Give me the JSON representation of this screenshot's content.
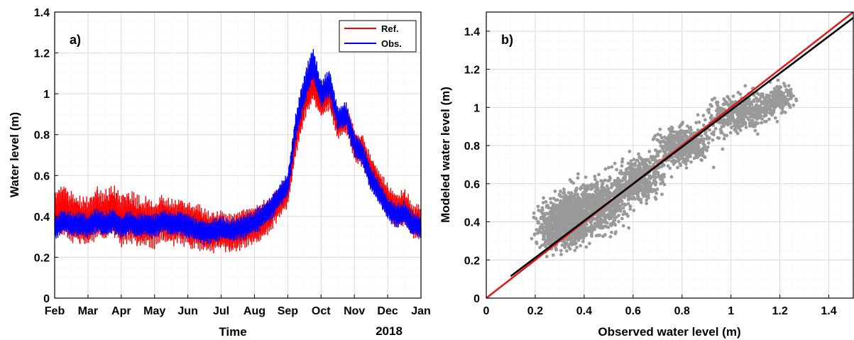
{
  "colors": {
    "ref": "#ff0000",
    "obs": "#0000ff",
    "scatter": "#999999",
    "fit": "#000000",
    "one_to_one": "#e31a1c",
    "grid_major": "#d9d9d9",
    "grid_minor": "#eeeeee"
  },
  "chart_data": [
    {
      "type": "line",
      "panel_label": "a)",
      "xlabel": "Time",
      "ylabel": "Water level (m)",
      "year_label": "2018",
      "ylim": [
        0,
        1.4
      ],
      "grid": true,
      "legend_position": "top-right",
      "xtick_labels": [
        "Feb",
        "Mar",
        "Apr",
        "May",
        "Jun",
        "Jul",
        "Aug",
        "Sep",
        "Oct",
        "Nov",
        "Dec",
        "Jan"
      ],
      "ytick_values": [
        0,
        0.2,
        0.4,
        0.6,
        0.8,
        1,
        1.2,
        1.4
      ],
      "ytick_labels": [
        "0",
        "0.2",
        "0.4",
        "0.6",
        "0.8",
        "1",
        "1.2",
        "1.4"
      ],
      "x_months": [
        0,
        0.25,
        0.5,
        0.75,
        1,
        1.25,
        1.5,
        1.75,
        2,
        2.25,
        2.5,
        2.75,
        3,
        3.25,
        3.5,
        3.75,
        4,
        4.25,
        4.5,
        4.75,
        5,
        5.25,
        5.5,
        5.75,
        6,
        6.25,
        6.5,
        6.75,
        7,
        7.25,
        7.5,
        7.75,
        8,
        8.25,
        8.5,
        8.75,
        9,
        9.25,
        9.5,
        9.75,
        10,
        10.25,
        10.5,
        10.75,
        11
      ],
      "series": [
        {
          "name": "Ref.",
          "color": "#ff0000",
          "values": [
            0.4,
            0.44,
            0.4,
            0.38,
            0.37,
            0.42,
            0.4,
            0.43,
            0.38,
            0.4,
            0.37,
            0.38,
            0.36,
            0.39,
            0.37,
            0.38,
            0.36,
            0.35,
            0.33,
            0.32,
            0.33,
            0.32,
            0.33,
            0.35,
            0.36,
            0.38,
            0.42,
            0.47,
            0.52,
            0.78,
            0.95,
            1.05,
            0.95,
            1.0,
            0.85,
            0.88,
            0.75,
            0.72,
            0.62,
            0.55,
            0.48,
            0.42,
            0.45,
            0.38,
            0.37
          ],
          "band": [
            0.11,
            0.13,
            0.13,
            0.12,
            0.13,
            0.13,
            0.13,
            0.13,
            0.14,
            0.13,
            0.13,
            0.12,
            0.12,
            0.12,
            0.12,
            0.12,
            0.12,
            0.12,
            0.11,
            0.11,
            0.1,
            0.1,
            0.1,
            0.1,
            0.1,
            0.1,
            0.09,
            0.08,
            0.08,
            0.08,
            0.08,
            0.09,
            0.08,
            0.08,
            0.07,
            0.07,
            0.08,
            0.08,
            0.08,
            0.08,
            0.08,
            0.09,
            0.09,
            0.09,
            0.08
          ]
        },
        {
          "name": "Obs.",
          "color": "#0000ff",
          "values": [
            0.34,
            0.38,
            0.36,
            0.36,
            0.35,
            0.38,
            0.36,
            0.38,
            0.35,
            0.37,
            0.35,
            0.36,
            0.35,
            0.38,
            0.36,
            0.37,
            0.35,
            0.34,
            0.32,
            0.33,
            0.34,
            0.33,
            0.34,
            0.35,
            0.37,
            0.4,
            0.44,
            0.5,
            0.55,
            0.85,
            1.02,
            1.15,
            1.0,
            1.05,
            0.88,
            0.9,
            0.75,
            0.7,
            0.58,
            0.52,
            0.44,
            0.4,
            0.42,
            0.36,
            0.35
          ],
          "band": [
            0.06,
            0.06,
            0.06,
            0.06,
            0.06,
            0.06,
            0.06,
            0.06,
            0.06,
            0.06,
            0.06,
            0.06,
            0.06,
            0.06,
            0.06,
            0.06,
            0.06,
            0.06,
            0.06,
            0.06,
            0.06,
            0.06,
            0.06,
            0.06,
            0.06,
            0.06,
            0.06,
            0.06,
            0.06,
            0.07,
            0.08,
            0.09,
            0.07,
            0.07,
            0.06,
            0.06,
            0.06,
            0.06,
            0.06,
            0.06,
            0.06,
            0.06,
            0.06,
            0.06,
            0.06
          ]
        }
      ]
    },
    {
      "type": "scatter",
      "panel_label": "b)",
      "xlabel": "Observed water level (m)",
      "ylabel": "Modeled water level (m)",
      "xlim": [
        0,
        1.5
      ],
      "ylim": [
        0,
        1.5
      ],
      "grid": true,
      "xtick_values": [
        0,
        0.2,
        0.4,
        0.6,
        0.8,
        1,
        1.2,
        1.4
      ],
      "xtick_labels": [
        "0",
        "0.2",
        "0.4",
        "0.6",
        "0.8",
        "1",
        "1.2",
        "1.4"
      ],
      "ytick_values": [
        0,
        0.2,
        0.4,
        0.6,
        0.8,
        1,
        1.2,
        1.4
      ],
      "ytick_labels": [
        "0",
        "0.2",
        "0.4",
        "0.6",
        "0.8",
        "1",
        "1.2",
        "1.4"
      ],
      "clusters": [
        {
          "x": 0.32,
          "y": 0.4,
          "sx": 0.07,
          "sy": 0.09,
          "n": 900
        },
        {
          "x": 0.45,
          "y": 0.48,
          "sx": 0.09,
          "sy": 0.1,
          "n": 700
        },
        {
          "x": 0.62,
          "y": 0.62,
          "sx": 0.07,
          "sy": 0.08,
          "n": 500
        },
        {
          "x": 0.8,
          "y": 0.8,
          "sx": 0.08,
          "sy": 0.07,
          "n": 500
        },
        {
          "x": 1.05,
          "y": 0.98,
          "sx": 0.1,
          "sy": 0.07,
          "n": 450
        },
        {
          "x": 1.2,
          "y": 1.05,
          "sx": 0.04,
          "sy": 0.05,
          "n": 150
        }
      ],
      "lines": [
        {
          "kind": "one-to-one",
          "x": [
            0,
            1.5
          ],
          "y": [
            0,
            1.5
          ],
          "color": "#e31a1c"
        },
        {
          "kind": "fit",
          "x": [
            0.1,
            1.5
          ],
          "y": [
            0.115,
            1.47
          ],
          "color": "#000000"
        }
      ]
    }
  ]
}
